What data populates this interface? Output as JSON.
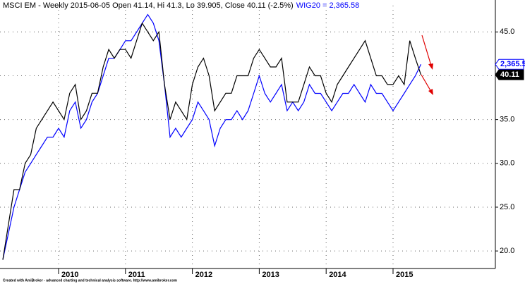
{
  "chart_data": {
    "type": "line",
    "title": "MSCI EM - Weekly 2015-06-05 Open 41.14, Hi 41.3, Lo 39.905, Close 40.11 (-2.5%)",
    "subtitle": "WIG20 = 2,365.58",
    "footer": "Created with AmiBroker - advanced charting and technical analysis software. http://www.amibroker.com",
    "categories": [
      null,
      null,
      null,
      null,
      null,
      null,
      null,
      null,
      null,
      null,
      "2010",
      null,
      null,
      null,
      null,
      null,
      null,
      null,
      null,
      null,
      null,
      null,
      "2011",
      null,
      null,
      null,
      null,
      null,
      null,
      null,
      null,
      null,
      null,
      null,
      "2012",
      null,
      null,
      null,
      null,
      null,
      null,
      null,
      null,
      null,
      null,
      null,
      "2013",
      null,
      null,
      null,
      null,
      null,
      null,
      null,
      null,
      null,
      null,
      null,
      "2014",
      null,
      null,
      null,
      null,
      null,
      null,
      null,
      null,
      null,
      null,
      null,
      "2015",
      null,
      null,
      null,
      null,
      null
    ],
    "series": [
      {
        "color": "#000000",
        "values": [
          19,
          23,
          27,
          27,
          30,
          31,
          34,
          35,
          36,
          37,
          36,
          35,
          38,
          39,
          35,
          36,
          38,
          38,
          41,
          43,
          42,
          43,
          43,
          42,
          44,
          46,
          45,
          44,
          45,
          39,
          35,
          37,
          36,
          35,
          39,
          41,
          42,
          40,
          36,
          37,
          38,
          38,
          40,
          40,
          40,
          42,
          43,
          42,
          41,
          41,
          42,
          37,
          37,
          37,
          39,
          41,
          40,
          40,
          38,
          37,
          39,
          40,
          41,
          42,
          43,
          44,
          42,
          40,
          40,
          39,
          39,
          40,
          39,
          44,
          42,
          40.11
        ],
        "value_labels": [
          null,
          null,
          null,
          null,
          null,
          null,
          null,
          null,
          null,
          null,
          null,
          null,
          null,
          null,
          null,
          null,
          null,
          null,
          null,
          null,
          null,
          null,
          null,
          null,
          null,
          null,
          null,
          null,
          null,
          null,
          null,
          null,
          null,
          null,
          null,
          null,
          null,
          null,
          null,
          null,
          null,
          null,
          null,
          null,
          null,
          null,
          null,
          null,
          null,
          null,
          null,
          null,
          null,
          null,
          null,
          null,
          null,
          null,
          null,
          null,
          null,
          null,
          null,
          null,
          null,
          null,
          null,
          null,
          null,
          null,
          null,
          null,
          null,
          null,
          null,
          "40.11"
        ]
      },
      {
        "color": "#0000ff",
        "axis": "y2",
        "values": [
          1353,
          1489,
          1625,
          1716,
          1807,
          1852,
          1898,
          1943,
          1988,
          1988,
          2034,
          1988,
          2125,
          2170,
          2034,
          2079,
          2170,
          2215,
          2306,
          2397,
          2397,
          2442,
          2488,
          2488,
          2533,
          2579,
          2624,
          2579,
          2488,
          2261,
          1988,
          2034,
          1988,
          2034,
          2079,
          2170,
          2125,
          2079,
          1943,
          2034,
          2079,
          2079,
          2125,
          2079,
          2125,
          2215,
          2306,
          2215,
          2170,
          2215,
          2261,
          2125,
          2170,
          2125,
          2170,
          2261,
          2215,
          2215,
          2170,
          2125,
          2170,
          2215,
          2215,
          2261,
          2215,
          2170,
          2261,
          2215,
          2215,
          2170,
          2125,
          2170,
          2215,
          2261,
          2306,
          2365.58
        ],
        "value_labels": [
          null,
          null,
          null,
          null,
          null,
          null,
          null,
          null,
          null,
          null,
          null,
          null,
          null,
          null,
          null,
          null,
          null,
          null,
          null,
          null,
          null,
          null,
          null,
          null,
          null,
          null,
          null,
          null,
          null,
          null,
          null,
          null,
          null,
          null,
          null,
          null,
          null,
          null,
          null,
          null,
          null,
          null,
          null,
          null,
          null,
          null,
          null,
          null,
          null,
          null,
          null,
          null,
          null,
          null,
          null,
          null,
          null,
          null,
          null,
          null,
          null,
          null,
          null,
          null,
          null,
          null,
          null,
          null,
          null,
          null,
          null,
          null,
          null,
          null,
          null,
          "2,365.58"
        ]
      }
    ],
    "ylim": [
      18,
      48
    ],
    "yticks": [
      {
        "value": 20,
        "label": "20.0"
      },
      {
        "value": 25,
        "label": "25.0"
      },
      {
        "value": 30,
        "label": "30.0"
      },
      {
        "value": 35,
        "label": "35.0"
      },
      {
        "value": 40,
        "label": "40.0"
      },
      {
        "value": 45,
        "label": "45.0"
      }
    ],
    "y2lim": [
      1307,
      2670
    ],
    "grid": true
  }
}
